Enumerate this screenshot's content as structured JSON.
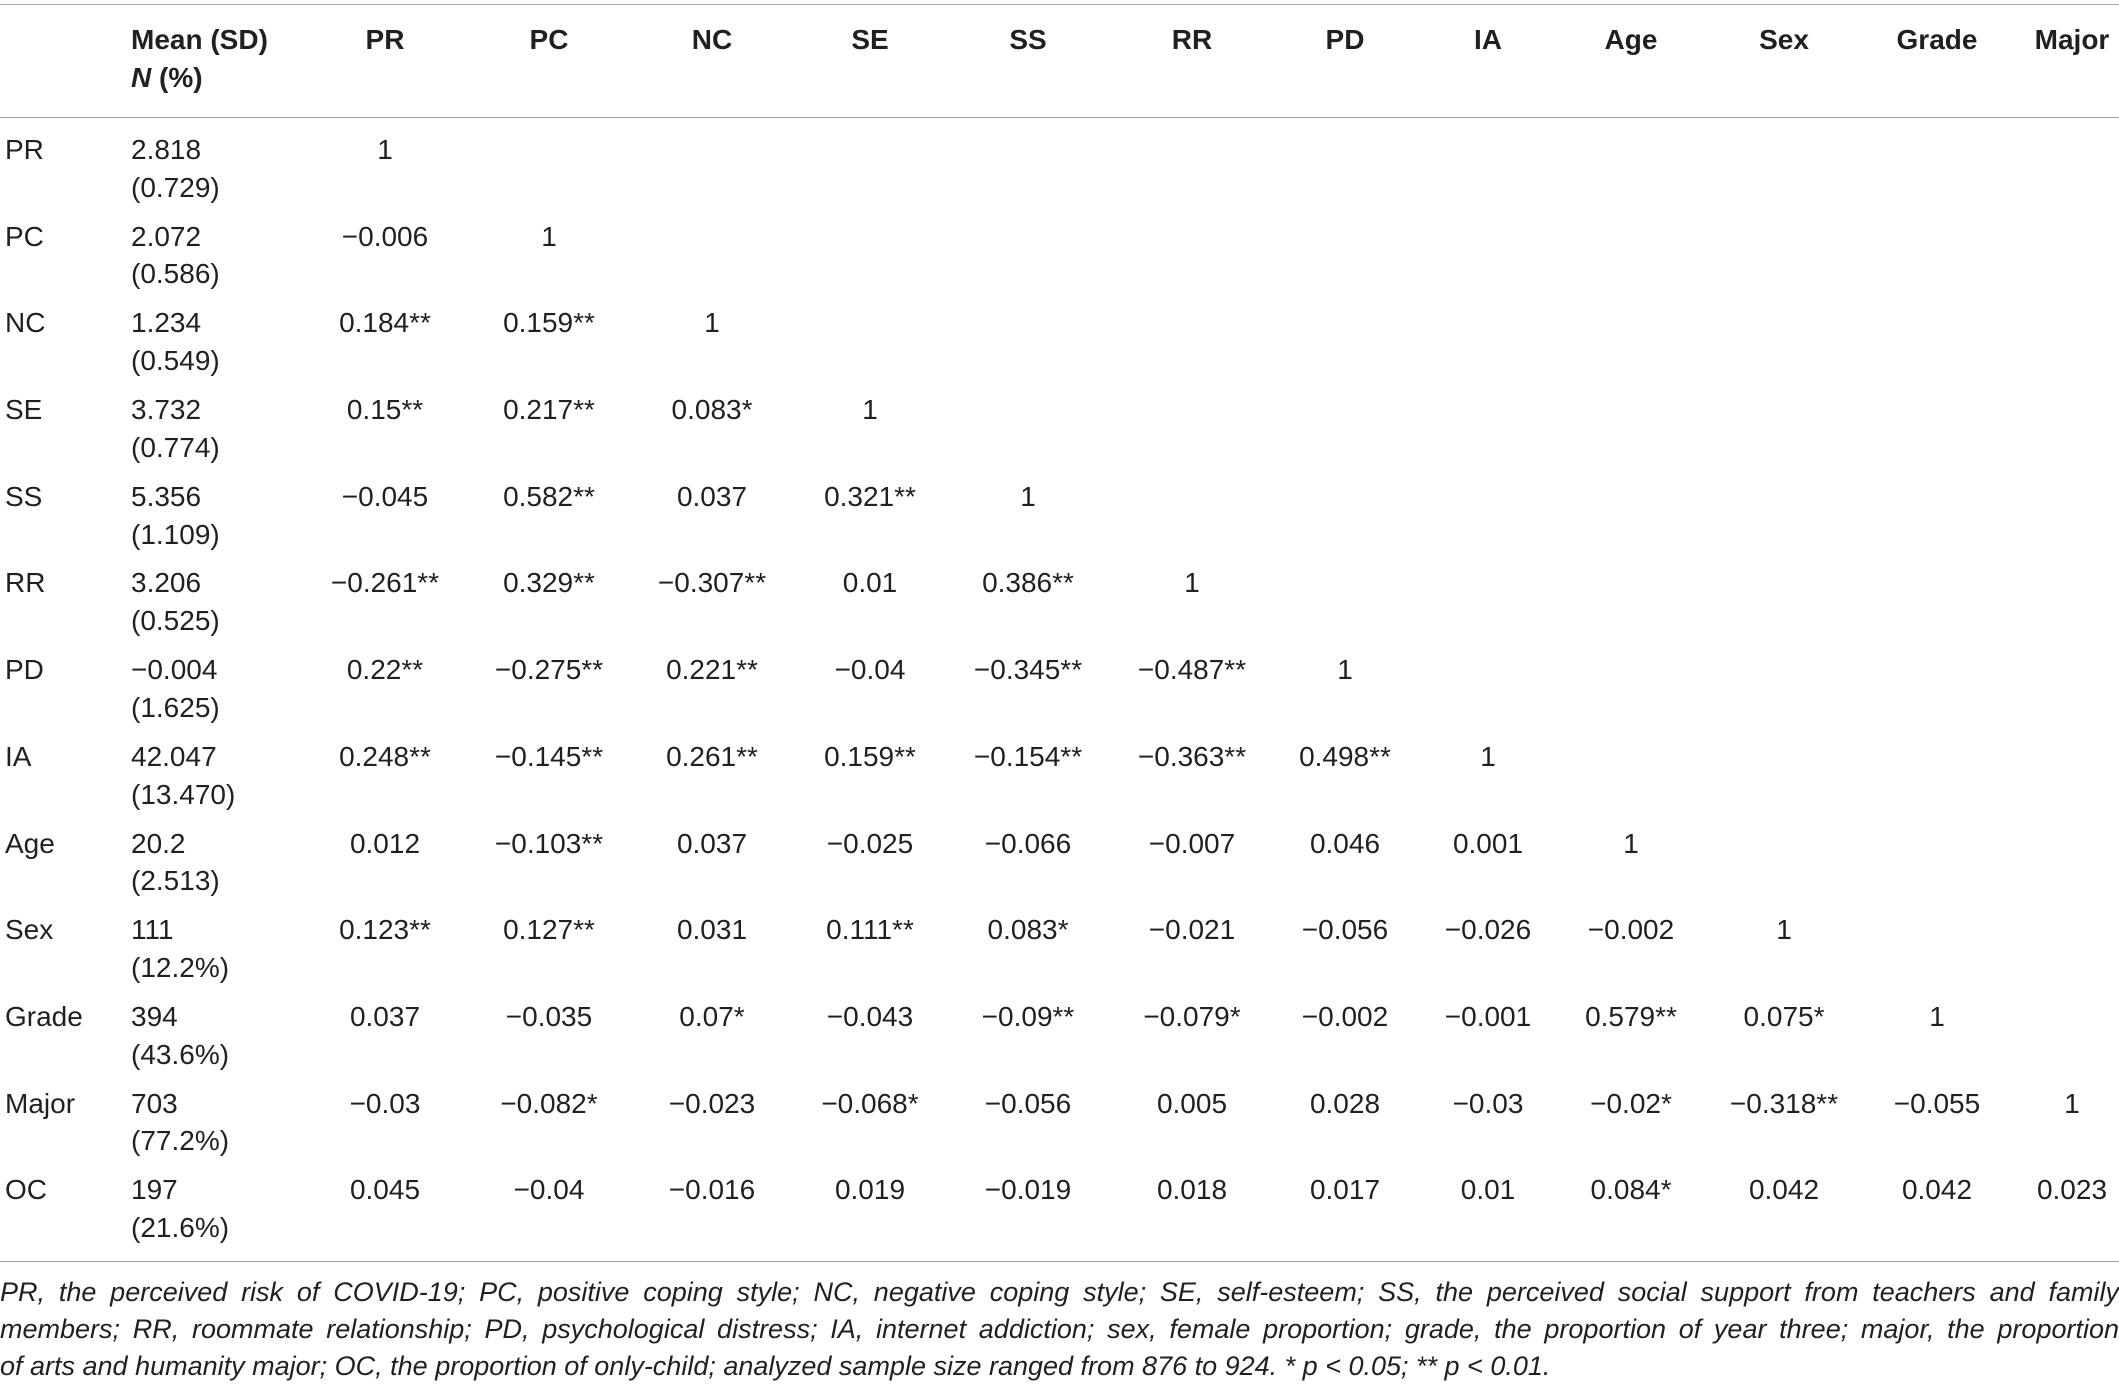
{
  "table": {
    "header": {
      "mean_label": "Mean (SD)",
      "n_label": "N",
      "pct_label": "(%)",
      "columns": [
        "PR",
        "PC",
        "NC",
        "SE",
        "SS",
        "RR",
        "PD",
        "IA",
        "Age",
        "Sex",
        "Grade",
        "Major"
      ]
    },
    "rows": [
      {
        "label": "PR",
        "mean_n": "2.818",
        "sd_pct": "(0.729)",
        "values": [
          "1"
        ]
      },
      {
        "label": "PC",
        "mean_n": "2.072",
        "sd_pct": "(0.586)",
        "values": [
          "−0.006",
          "1"
        ]
      },
      {
        "label": "NC",
        "mean_n": "1.234",
        "sd_pct": "(0.549)",
        "values": [
          "0.184**",
          "0.159**",
          "1"
        ]
      },
      {
        "label": "SE",
        "mean_n": "3.732",
        "sd_pct": "(0.774)",
        "values": [
          "0.15**",
          "0.217**",
          "0.083*",
          "1"
        ]
      },
      {
        "label": "SS",
        "mean_n": "5.356",
        "sd_pct": "(1.109)",
        "values": [
          "−0.045",
          "0.582**",
          "0.037",
          "0.321**",
          "1"
        ]
      },
      {
        "label": "RR",
        "mean_n": "3.206",
        "sd_pct": "(0.525)",
        "values": [
          "−0.261**",
          "0.329**",
          "−0.307**",
          "0.01",
          "0.386**",
          "1"
        ]
      },
      {
        "label": "PD",
        "mean_n": "−0.004",
        "sd_pct": "(1.625)",
        "values": [
          "0.22**",
          "−0.275**",
          "0.221**",
          "−0.04",
          "−0.345**",
          "−0.487**",
          "1"
        ]
      },
      {
        "label": "IA",
        "mean_n": "42.047",
        "sd_pct": "(13.470)",
        "values": [
          "0.248**",
          "−0.145**",
          "0.261**",
          "0.159**",
          "−0.154**",
          "−0.363**",
          "0.498**",
          "1"
        ]
      },
      {
        "label": "Age",
        "mean_n": "20.2",
        "sd_pct": "(2.513)",
        "values": [
          "0.012",
          "−0.103**",
          "0.037",
          "−0.025",
          "−0.066",
          "−0.007",
          "0.046",
          "0.001",
          "1"
        ]
      },
      {
        "label": "Sex",
        "mean_n": "111",
        "sd_pct": "(12.2%)",
        "values": [
          "0.123**",
          "0.127**",
          "0.031",
          "0.111**",
          "0.083*",
          "−0.021",
          "−0.056",
          "−0.026",
          "−0.002",
          "1"
        ]
      },
      {
        "label": "Grade",
        "mean_n": "394",
        "sd_pct": "(43.6%)",
        "values": [
          "0.037",
          "−0.035",
          "0.07*",
          "−0.043",
          "−0.09**",
          "−0.079*",
          "−0.002",
          "−0.001",
          "0.579**",
          "0.075*",
          "1"
        ]
      },
      {
        "label": "Major",
        "mean_n": "703",
        "sd_pct": "(77.2%)",
        "values": [
          "−0.03",
          "−0.082*",
          "−0.023",
          "−0.068*",
          "−0.056",
          "0.005",
          "0.028",
          "−0.03",
          "−0.02*",
          "−0.318**",
          "−0.055",
          "1"
        ]
      },
      {
        "label": "OC",
        "mean_n": "197",
        "sd_pct": "(21.6%)",
        "values": [
          "0.045",
          "−0.04",
          "−0.016",
          "0.019",
          "−0.019",
          "0.018",
          "0.017",
          "0.01",
          "0.084*",
          "0.042",
          "0.042",
          "0.023"
        ]
      }
    ]
  },
  "footnote": {
    "lines": [
      "PR, the perceived risk of COVID-19; PC, positive coping style; NC, negative coping style; SE, self-esteem; SS, the perceived social support from teachers and family",
      "members; RR, roommate relationship; PD, psychological distress; IA, internet addiction; sex, female proportion; grade, the proportion of year three; major, the proportion",
      "of arts and humanity major; OC, the proportion of only-child; analyzed sample size ranged from 876 to 924. * p < 0.05; ** p < 0.01."
    ]
  }
}
